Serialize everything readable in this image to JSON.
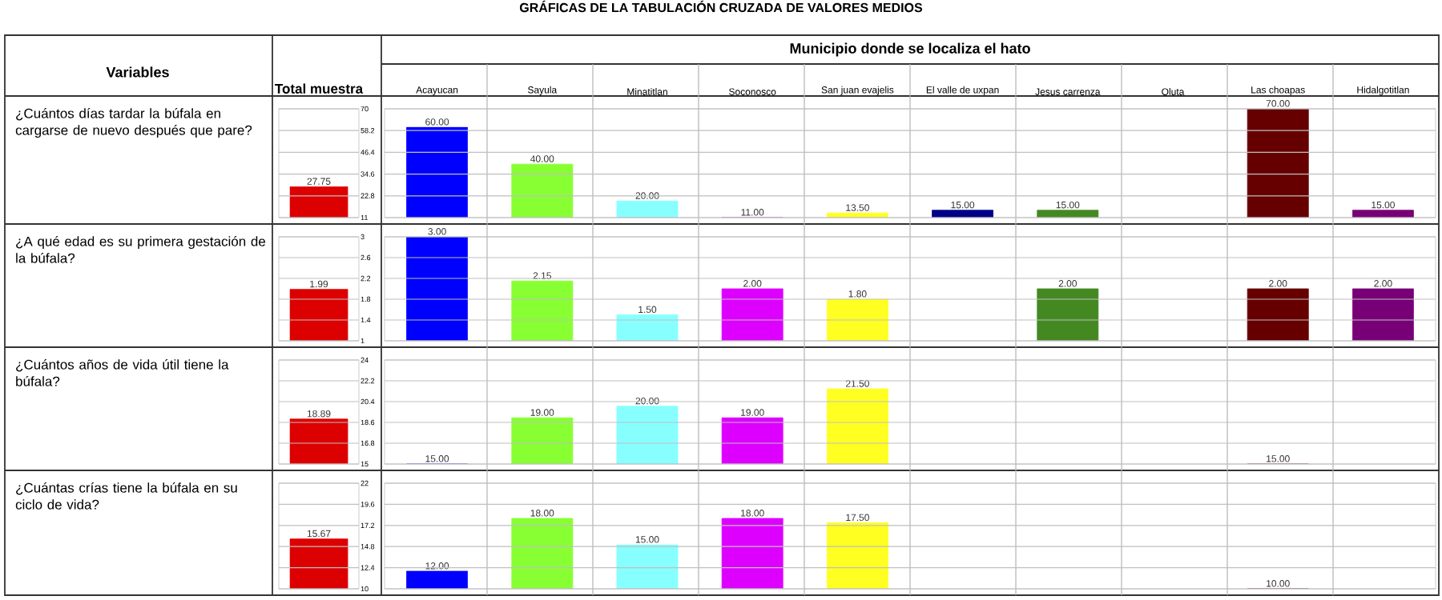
{
  "chart_data": [
    {
      "type": "bar",
      "annotations": [
        "Variables"
      ],
      "ylabel": "¿Cuántos días tardar la búfala en cargarse de nuevo después que pare?",
      "categories": [
        "Total muestra"
      ],
      "values": [
        27.75
      ],
      "colors": [
        "#dd0000"
      ],
      "value_labels": [
        "27.75"
      ],
      "ylim": [
        11,
        70
      ],
      "yticks": [
        11,
        22.8,
        34.6,
        46.4,
        58.2,
        70
      ],
      "grid": "y"
    },
    {
      "type": "bar",
      "title": "GRÁFICAS DE LA TABULACIÓN CRUZADA DE VALORES MEDIOS",
      "xlabel": "Municipio donde se localiza el hato",
      "categories": [
        "Acayucan",
        "Sayula",
        "Minatitlan",
        "Soconosco",
        "San juan evajelis",
        "El valle de uxpan",
        "Jesus carrenza",
        "Oluta",
        "Las choapas",
        "Hidalgotitlan"
      ],
      "values": [
        60,
        40,
        20,
        11,
        13.5,
        15,
        15,
        null,
        70,
        15
      ],
      "colors": [
        "#0000ff",
        "#88ff33",
        "#88ffff",
        "#dd00ff",
        "#ffff22",
        "#000088",
        "#448822",
        "#888888",
        "#660000",
        "#770077"
      ],
      "value_labels": [
        "60.00",
        "40.00",
        "20.00",
        "11.00",
        "13.50",
        "15.00",
        "15.00",
        null,
        "70.00",
        "15.00"
      ],
      "ylim": [
        11,
        70
      ],
      "yticks": [
        11,
        22.8,
        34.6,
        46.4,
        58.2,
        70
      ],
      "grid": "y",
      "tick_labels": "x"
    },
    {
      "type": "bar",
      "ylabel": "¿A qué edad es su primera gestación de la búfala?",
      "categories": [
        null
      ],
      "values": [
        1.99
      ],
      "colors": [
        "#dd0000"
      ],
      "value_labels": [
        "1.99"
      ],
      "ylim": [
        1,
        3
      ],
      "yticks": [
        1,
        1.4,
        1.8,
        2.2,
        2.6,
        3
      ],
      "grid": "y",
      "tick_labels": "y"
    },
    {
      "type": "bar",
      "categories": [
        null,
        null,
        null,
        null,
        null,
        null,
        null,
        null,
        null,
        null
      ],
      "values": [
        3,
        2.15,
        1.5,
        2,
        1.8,
        null,
        2,
        null,
        2,
        2
      ],
      "colors": [
        "#0000ff",
        "#88ff33",
        "#88ffff",
        "#dd00ff",
        "#ffff22",
        "#000088",
        "#448822",
        "#888888",
        "#660000",
        "#770077"
      ],
      "value_labels": [
        "3.00",
        "2.15",
        "1.50",
        "2.00",
        "1.80",
        null,
        "2.00",
        null,
        "2.00",
        "2.00"
      ],
      "ylim": [
        1,
        3
      ],
      "yticks": [
        1,
        1.4,
        1.8,
        2.2,
        2.6,
        3
      ],
      "grid": "y",
      "tick_labels": false
    },
    {
      "type": "bar",
      "ylabel": "¿Cuántos años de vida útil tiene la búfala?",
      "categories": [
        null
      ],
      "values": [
        18.89
      ],
      "colors": [
        "#dd0000"
      ],
      "value_labels": [
        "18.89"
      ],
      "ylim": [
        15,
        24
      ],
      "yticks": [
        15,
        16.8,
        18.6,
        20.4,
        22.2,
        24
      ],
      "grid": "y",
      "tick_labels": "y"
    },
    {
      "type": "bar",
      "categories": [
        null,
        null,
        null,
        null,
        null,
        null,
        null,
        null,
        null,
        null
      ],
      "values": [
        15,
        19,
        20,
        19,
        21.5,
        null,
        null,
        null,
        15,
        null
      ],
      "colors": [
        "#0000ff",
        "#88ff33",
        "#88ffff",
        "#dd00ff",
        "#ffff22",
        "#000088",
        "#448822",
        "#888888",
        "#660000",
        "#770077"
      ],
      "value_labels": [
        "15.00",
        "19.00",
        "20.00",
        "19.00",
        "21.50",
        null,
        null,
        null,
        "15.00",
        null
      ],
      "ylim": [
        15,
        24
      ],
      "yticks": [
        15,
        16.8,
        18.6,
        20.4,
        22.2,
        24
      ],
      "grid": "y",
      "tick_labels": false
    },
    {
      "type": "bar",
      "ylabel": "¿Cuántas crías tiene la búfala en su ciclo de vida?",
      "categories": [
        null
      ],
      "values": [
        15.67
      ],
      "colors": [
        "#dd0000"
      ],
      "value_labels": [
        "15.67"
      ],
      "ylim": [
        10,
        22
      ],
      "yticks": [
        10,
        12.4,
        14.8,
        17.2,
        19.6,
        22
      ],
      "grid": "y",
      "tick_labels": "y"
    },
    {
      "type": "bar",
      "categories": [
        null,
        null,
        null,
        null,
        null,
        null,
        null,
        null,
        null,
        null
      ],
      "values": [
        12,
        18,
        15,
        18,
        17.5,
        null,
        null,
        null,
        10,
        null
      ],
      "colors": [
        "#0000ff",
        "#88ff33",
        "#88ffff",
        "#dd00ff",
        "#ffff22",
        "#000088",
        "#448822",
        "#888888",
        "#660000",
        "#770077"
      ],
      "value_labels": [
        "12.00",
        "18.00",
        "15.00",
        "18.00",
        "17.50",
        null,
        null,
        null,
        "10.00",
        null
      ],
      "ylim": [
        10,
        22
      ],
      "yticks": [
        10,
        12.4,
        14.8,
        17.2,
        19.6,
        22
      ],
      "grid": "y",
      "tick_labels": false
    }
  ]
}
